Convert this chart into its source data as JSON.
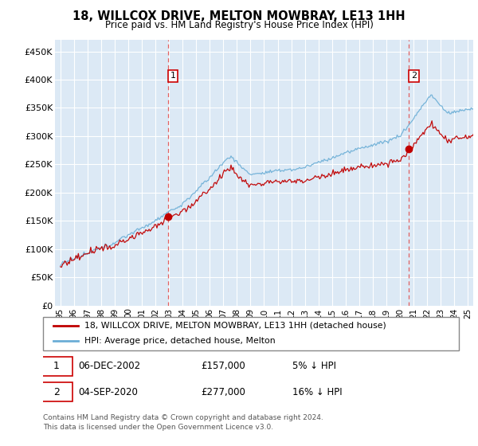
{
  "title": "18, WILLCOX DRIVE, MELTON MOWBRAY, LE13 1HH",
  "subtitle": "Price paid vs. HM Land Registry's House Price Index (HPI)",
  "background_color": "#ffffff",
  "plot_background": "#dce9f5",
  "grid_color": "#ffffff",
  "sale1_date_num": 2002.92,
  "sale1_price": 157000,
  "sale2_date_num": 2020.67,
  "sale2_price": 277000,
  "legend_line1": "18, WILLCOX DRIVE, MELTON MOWBRAY, LE13 1HH (detached house)",
  "legend_line2": "HPI: Average price, detached house, Melton",
  "table_row1": [
    "1",
    "06-DEC-2002",
    "£157,000",
    "5% ↓ HPI"
  ],
  "table_row2": [
    "2",
    "04-SEP-2020",
    "£277,000",
    "16% ↓ HPI"
  ],
  "footer": "Contains HM Land Registry data © Crown copyright and database right 2024.\nThis data is licensed under the Open Government Licence v3.0.",
  "hpi_color": "#6baed6",
  "price_color": "#c00000",
  "dashed_color": "#e06060",
  "ylim_min": 0,
  "ylim_max": 470000,
  "xlim_min": 1994.6,
  "xlim_max": 2025.4,
  "yticks": [
    0,
    50000,
    100000,
    150000,
    200000,
    250000,
    300000,
    350000,
    400000,
    450000
  ],
  "ytick_labels": [
    "£0",
    "£50K",
    "£100K",
    "£150K",
    "£200K",
    "£250K",
    "£300K",
    "£350K",
    "£400K",
    "£450K"
  ],
  "xtick_years": [
    1995,
    1996,
    1997,
    1998,
    1999,
    2000,
    2001,
    2002,
    2003,
    2004,
    2005,
    2006,
    2007,
    2008,
    2009,
    2010,
    2011,
    2012,
    2013,
    2014,
    2015,
    2016,
    2017,
    2018,
    2019,
    2020,
    2021,
    2022,
    2023,
    2024,
    2025
  ],
  "xtick_labels": [
    "95",
    "96",
    "97",
    "98",
    "99",
    "00",
    "01",
    "02",
    "03",
    "04",
    "05",
    "06",
    "07",
    "08",
    "09",
    "10",
    "11",
    "12",
    "13",
    "14",
    "15",
    "16",
    "17",
    "18",
    "19",
    "20",
    "21",
    "22",
    "23",
    "24",
    "25"
  ]
}
